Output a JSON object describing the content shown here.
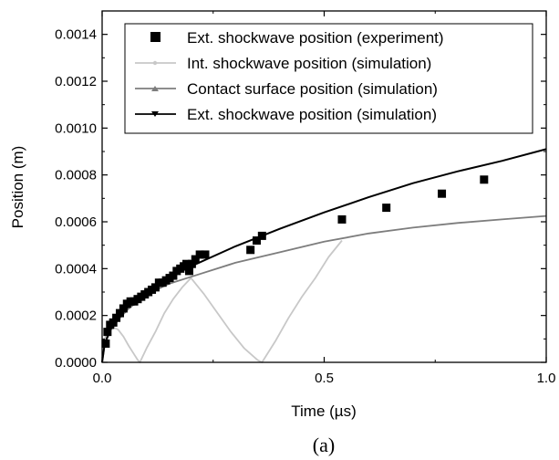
{
  "chart_data": {
    "type": "line",
    "caption": "(a)",
    "xlabel": "Time (µs)",
    "ylabel": "Position (m)",
    "xlim": [
      0.0,
      1.0
    ],
    "ylim": [
      0.0,
      0.0015
    ],
    "x_ticks": [
      "0.0",
      "0.5",
      "1.0"
    ],
    "y_ticks": [
      "0.0000",
      "0.0002",
      "0.0004",
      "0.0006",
      "0.0008",
      "0.0010",
      "0.0012",
      "0.0014"
    ],
    "legend_position": "top-right",
    "series": [
      {
        "name": "Ext. shockwave position (experiment)",
        "kind": "scatter",
        "marker": "square",
        "color": "#000000",
        "x": [
          0.008,
          0.012,
          0.018,
          0.025,
          0.032,
          0.04,
          0.048,
          0.056,
          0.064,
          0.072,
          0.08,
          0.088,
          0.096,
          0.104,
          0.112,
          0.12,
          0.128,
          0.136,
          0.144,
          0.152,
          0.16,
          0.168,
          0.176,
          0.184,
          0.19,
          0.196,
          0.202,
          0.21,
          0.22,
          0.232,
          0.334,
          0.348,
          0.36,
          0.54,
          0.64,
          0.765,
          0.86
        ],
        "y": [
          8e-05,
          0.00013,
          0.00016,
          0.00017,
          0.00019,
          0.00021,
          0.00023,
          0.00025,
          0.00026,
          0.00026,
          0.00027,
          0.00028,
          0.00029,
          0.0003,
          0.00031,
          0.00032,
          0.00034,
          0.00034,
          0.00035,
          0.00036,
          0.00037,
          0.00039,
          0.0004,
          0.00041,
          0.00042,
          0.00039,
          0.00042,
          0.00044,
          0.00046,
          0.00046,
          0.00048,
          0.00052,
          0.00054,
          0.00061,
          0.00066,
          0.00072,
          0.00078
        ]
      },
      {
        "name": "Int. shockwave position  (simulation)",
        "kind": "line",
        "color": "#c8c8c8",
        "x": [
          0.0,
          0.004,
          0.012,
          0.024,
          0.036,
          0.048,
          0.06,
          0.07,
          0.08,
          0.085,
          0.1,
          0.12,
          0.14,
          0.16,
          0.18,
          0.2,
          0.23,
          0.26,
          0.29,
          0.32,
          0.35,
          0.36,
          0.39,
          0.42,
          0.45,
          0.48,
          0.51,
          0.54
        ],
        "y": [
          0.0,
          9e-05,
          0.00013,
          0.00015,
          0.00014,
          0.00011,
          7e-05,
          4e-05,
          1e-05,
          0.0,
          6e-05,
          0.00013,
          0.00021,
          0.00027,
          0.00032,
          0.00036,
          0.00029,
          0.00021,
          0.00013,
          6e-05,
          1e-05,
          0.0,
          9e-05,
          0.00019,
          0.00028,
          0.00036,
          0.00045,
          0.00052
        ]
      },
      {
        "name": "Contact surface position (simulation)",
        "kind": "line",
        "color": "#7d7d7d",
        "x": [
          0.0,
          0.005,
          0.01,
          0.02,
          0.04,
          0.06,
          0.08,
          0.1,
          0.15,
          0.2,
          0.3,
          0.4,
          0.5,
          0.6,
          0.7,
          0.8,
          0.9,
          1.0
        ],
        "y": [
          0.0,
          6.5e-05,
          9.5e-05,
          0.00014,
          0.00019,
          0.00023,
          0.00026,
          0.00029,
          0.000335,
          0.000365,
          0.000425,
          0.00047,
          0.000515,
          0.00055,
          0.000575,
          0.000595,
          0.00061,
          0.000625
        ]
      },
      {
        "name": "Ext. shockwave position (simulation)",
        "kind": "line",
        "color": "#000000",
        "x": [
          0.0,
          0.005,
          0.01,
          0.02,
          0.04,
          0.06,
          0.08,
          0.1,
          0.15,
          0.2,
          0.3,
          0.4,
          0.5,
          0.6,
          0.7,
          0.8,
          0.9,
          1.0
        ],
        "y": [
          0.0,
          6.8e-05,
          0.0001,
          0.000145,
          0.0002,
          0.00024,
          0.000275,
          0.000305,
          0.00036,
          0.00041,
          0.000495,
          0.00057,
          0.00064,
          0.000705,
          0.000765,
          0.000815,
          0.00086,
          0.00091
        ]
      }
    ]
  }
}
